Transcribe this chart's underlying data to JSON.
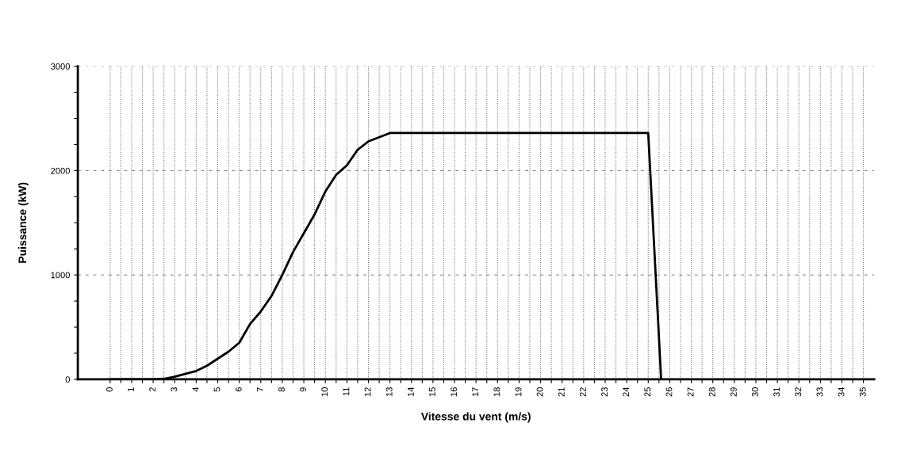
{
  "chart_data": {
    "type": "line",
    "xlabel": "Vitesse du vent (m/s)",
    "ylabel": "Puissance (kW)",
    "x": [
      0,
      1,
      2,
      2.5,
      3,
      4,
      4.5,
      5.5,
      6,
      6.5,
      7,
      7.5,
      8,
      8.5,
      9,
      9.5,
      10,
      10.5,
      11,
      11.5,
      12,
      12.5,
      13,
      25,
      25.6
    ],
    "series": [
      {
        "color": "#000000",
        "values": [
          0,
          0,
          0,
          5,
          25,
          80,
          130,
          265,
          350,
          530,
          650,
          800,
          1000,
          1220,
          1400,
          1580,
          1800,
          1960,
          2050,
          2200,
          2280,
          2320,
          2360,
          2360,
          0
        ]
      }
    ],
    "xlim": [
      -1.5,
      35.5
    ],
    "xticks": [
      0,
      {
        "value": 0.5,
        "label": null
      },
      1,
      {
        "value": 1.5,
        "label": null
      },
      2,
      {
        "value": 2.5,
        "label": null
      },
      3,
      {
        "value": 3.5,
        "label": null
      },
      4,
      {
        "value": 4.5,
        "label": null
      },
      5,
      {
        "value": 5.5,
        "label": null
      },
      6,
      {
        "value": 6.5,
        "label": null
      },
      7,
      {
        "value": 7.5,
        "label": null
      },
      8,
      {
        "value": 8.5,
        "label": null
      },
      9,
      {
        "value": 9.5,
        "label": null
      },
      10,
      {
        "value": 10.5,
        "label": null
      },
      11,
      {
        "value": 11.5,
        "label": null
      },
      12,
      {
        "value": 12.5,
        "label": null
      },
      13,
      {
        "value": 13.5,
        "label": null
      },
      14,
      {
        "value": 14.5,
        "label": null
      },
      15,
      {
        "value": 15.5,
        "label": null
      },
      16,
      {
        "value": 16.5,
        "label": null
      },
      17,
      {
        "value": 17.5,
        "label": null
      },
      18,
      {
        "value": 18.5,
        "label": null
      },
      19,
      {
        "value": 19.5,
        "label": null
      },
      20,
      {
        "value": 20.5,
        "label": null
      },
      21,
      {
        "value": 21.5,
        "label": null
      },
      22,
      {
        "value": 22.5,
        "label": null
      },
      23,
      {
        "value": 23.5,
        "label": null
      },
      24,
      {
        "value": 24.5,
        "label": null
      },
      25,
      {
        "value": 25.5,
        "label": null
      },
      26,
      {
        "value": 26.5,
        "label": null
      },
      27,
      {
        "value": 27.5,
        "label": null
      },
      28,
      {
        "value": 28.5,
        "label": null
      },
      29,
      {
        "value": 29.5,
        "label": null
      },
      30,
      {
        "value": 30.5,
        "label": null
      },
      31,
      {
        "value": 31.5,
        "label": null
      },
      32,
      {
        "value": 32.5,
        "label": null
      },
      33,
      {
        "value": 33.5,
        "label": null
      },
      34,
      {
        "value": 34.5,
        "label": null
      },
      35
    ],
    "ylim": [
      0,
      3000
    ],
    "yticks": [
      0,
      {
        "value": 250,
        "label": null
      },
      {
        "value": 500,
        "label": null
      },
      {
        "value": 750,
        "label": null
      },
      1000,
      {
        "value": 1250,
        "label": null
      },
      {
        "value": 1500,
        "label": null
      },
      {
        "value": 1750,
        "label": null
      },
      2000,
      {
        "value": 2250,
        "label": null
      },
      {
        "value": 2500,
        "label": null
      },
      {
        "value": 2750,
        "label": null
      },
      3000
    ],
    "grid": true,
    "marker": "none",
    "line_style": "solid",
    "legend": false
  }
}
